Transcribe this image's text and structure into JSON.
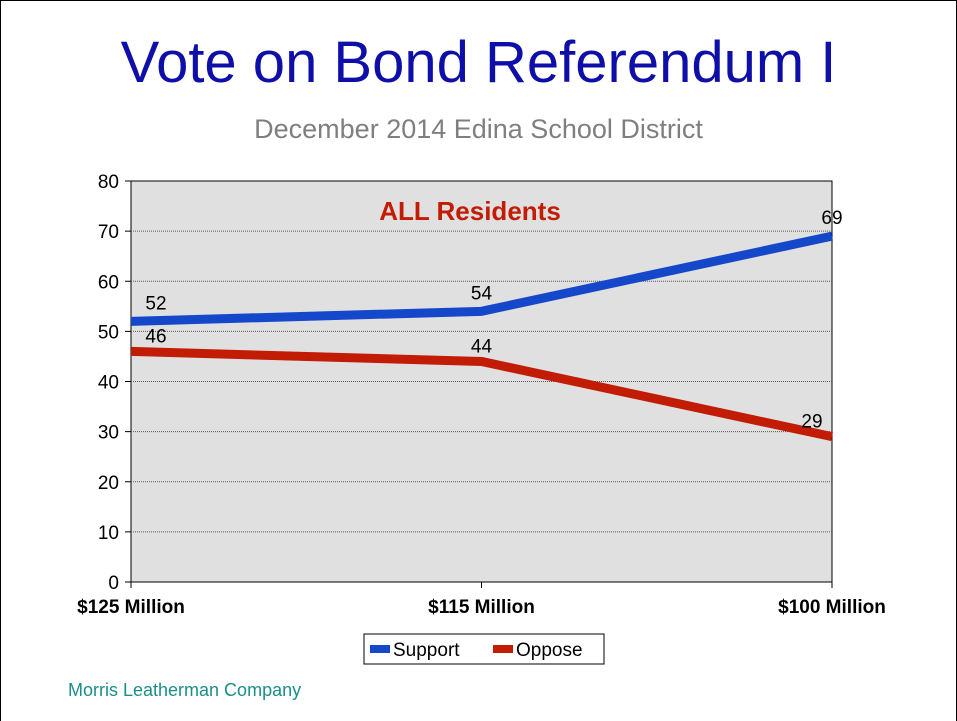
{
  "slide": {
    "title": "Vote on Bond Referendum I",
    "subtitle": "December 2014 Edina School District",
    "footer": "Morris Leatherman Company"
  },
  "chart_data": {
    "type": "line",
    "title": "",
    "annotation": "ALL Residents",
    "categories": [
      "$125 Million",
      "$115 Million",
      "$100 Million"
    ],
    "series": [
      {
        "name": "Support",
        "values": [
          52,
          54,
          69
        ],
        "color": "#1447c9"
      },
      {
        "name": "Oppose",
        "values": [
          46,
          44,
          29
        ],
        "color": "#c21c04"
      }
    ],
    "ylim": [
      0,
      80
    ],
    "yticks": [
      0,
      10,
      20,
      30,
      40,
      50,
      60,
      70,
      80
    ],
    "grid": true,
    "legend": "bottom-center",
    "plot_background": "#e0e0e0"
  }
}
